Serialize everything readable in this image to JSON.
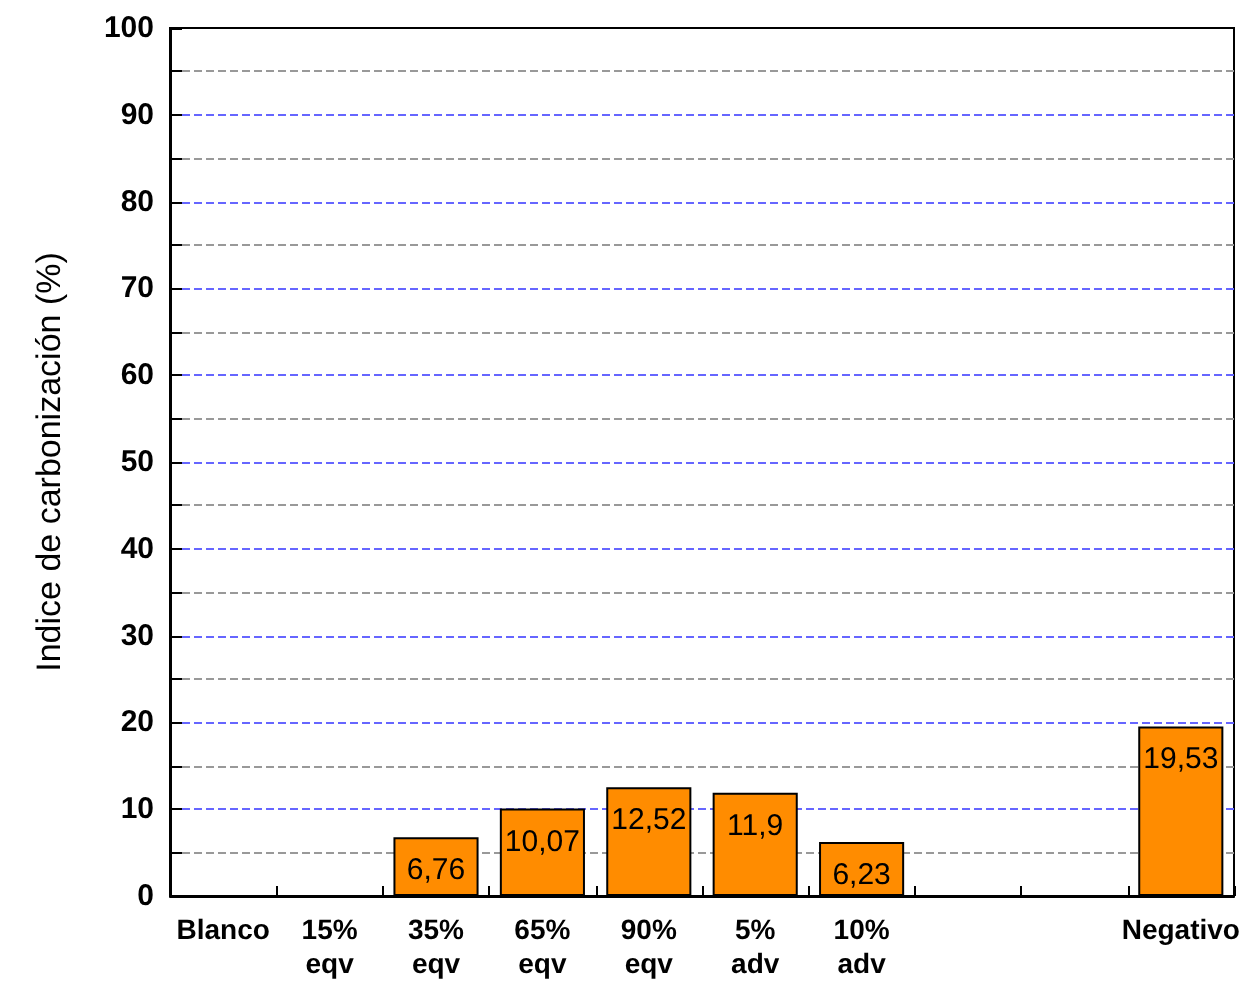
{
  "chart_data": {
    "type": "bar",
    "ylabel": "Indice de carbonización (%)",
    "categories": [
      "Blanco",
      "15%\neqv",
      "35%\neqv",
      "65%\neqv",
      "90%\neqv",
      "5%\nadv",
      "10%\nadv",
      null,
      null,
      "Negativo"
    ],
    "values": [
      null,
      null,
      6.76,
      10.07,
      12.52,
      11.9,
      6.23,
      null,
      null,
      19.53
    ],
    "value_labels": [
      null,
      null,
      "6,76",
      "10,07",
      "12,52",
      "11,9",
      "6,23",
      null,
      null,
      "19,53"
    ],
    "color": "#ff8c00",
    "ylim": [
      0,
      100
    ],
    "yticks": [
      0,
      {
        "value": 5,
        "label": null
      },
      10,
      {
        "value": 15,
        "label": null
      },
      20,
      {
        "value": 25,
        "label": null
      },
      30,
      {
        "value": 35,
        "label": null
      },
      40,
      {
        "value": 45,
        "label": null
      },
      50,
      {
        "value": 55,
        "label": null
      },
      60,
      {
        "value": 65,
        "label": null
      },
      70,
      {
        "value": 75,
        "label": null
      },
      80,
      {
        "value": 85,
        "label": null
      },
      90,
      {
        "value": 95,
        "label": null
      },
      100
    ],
    "grid": "y"
  }
}
